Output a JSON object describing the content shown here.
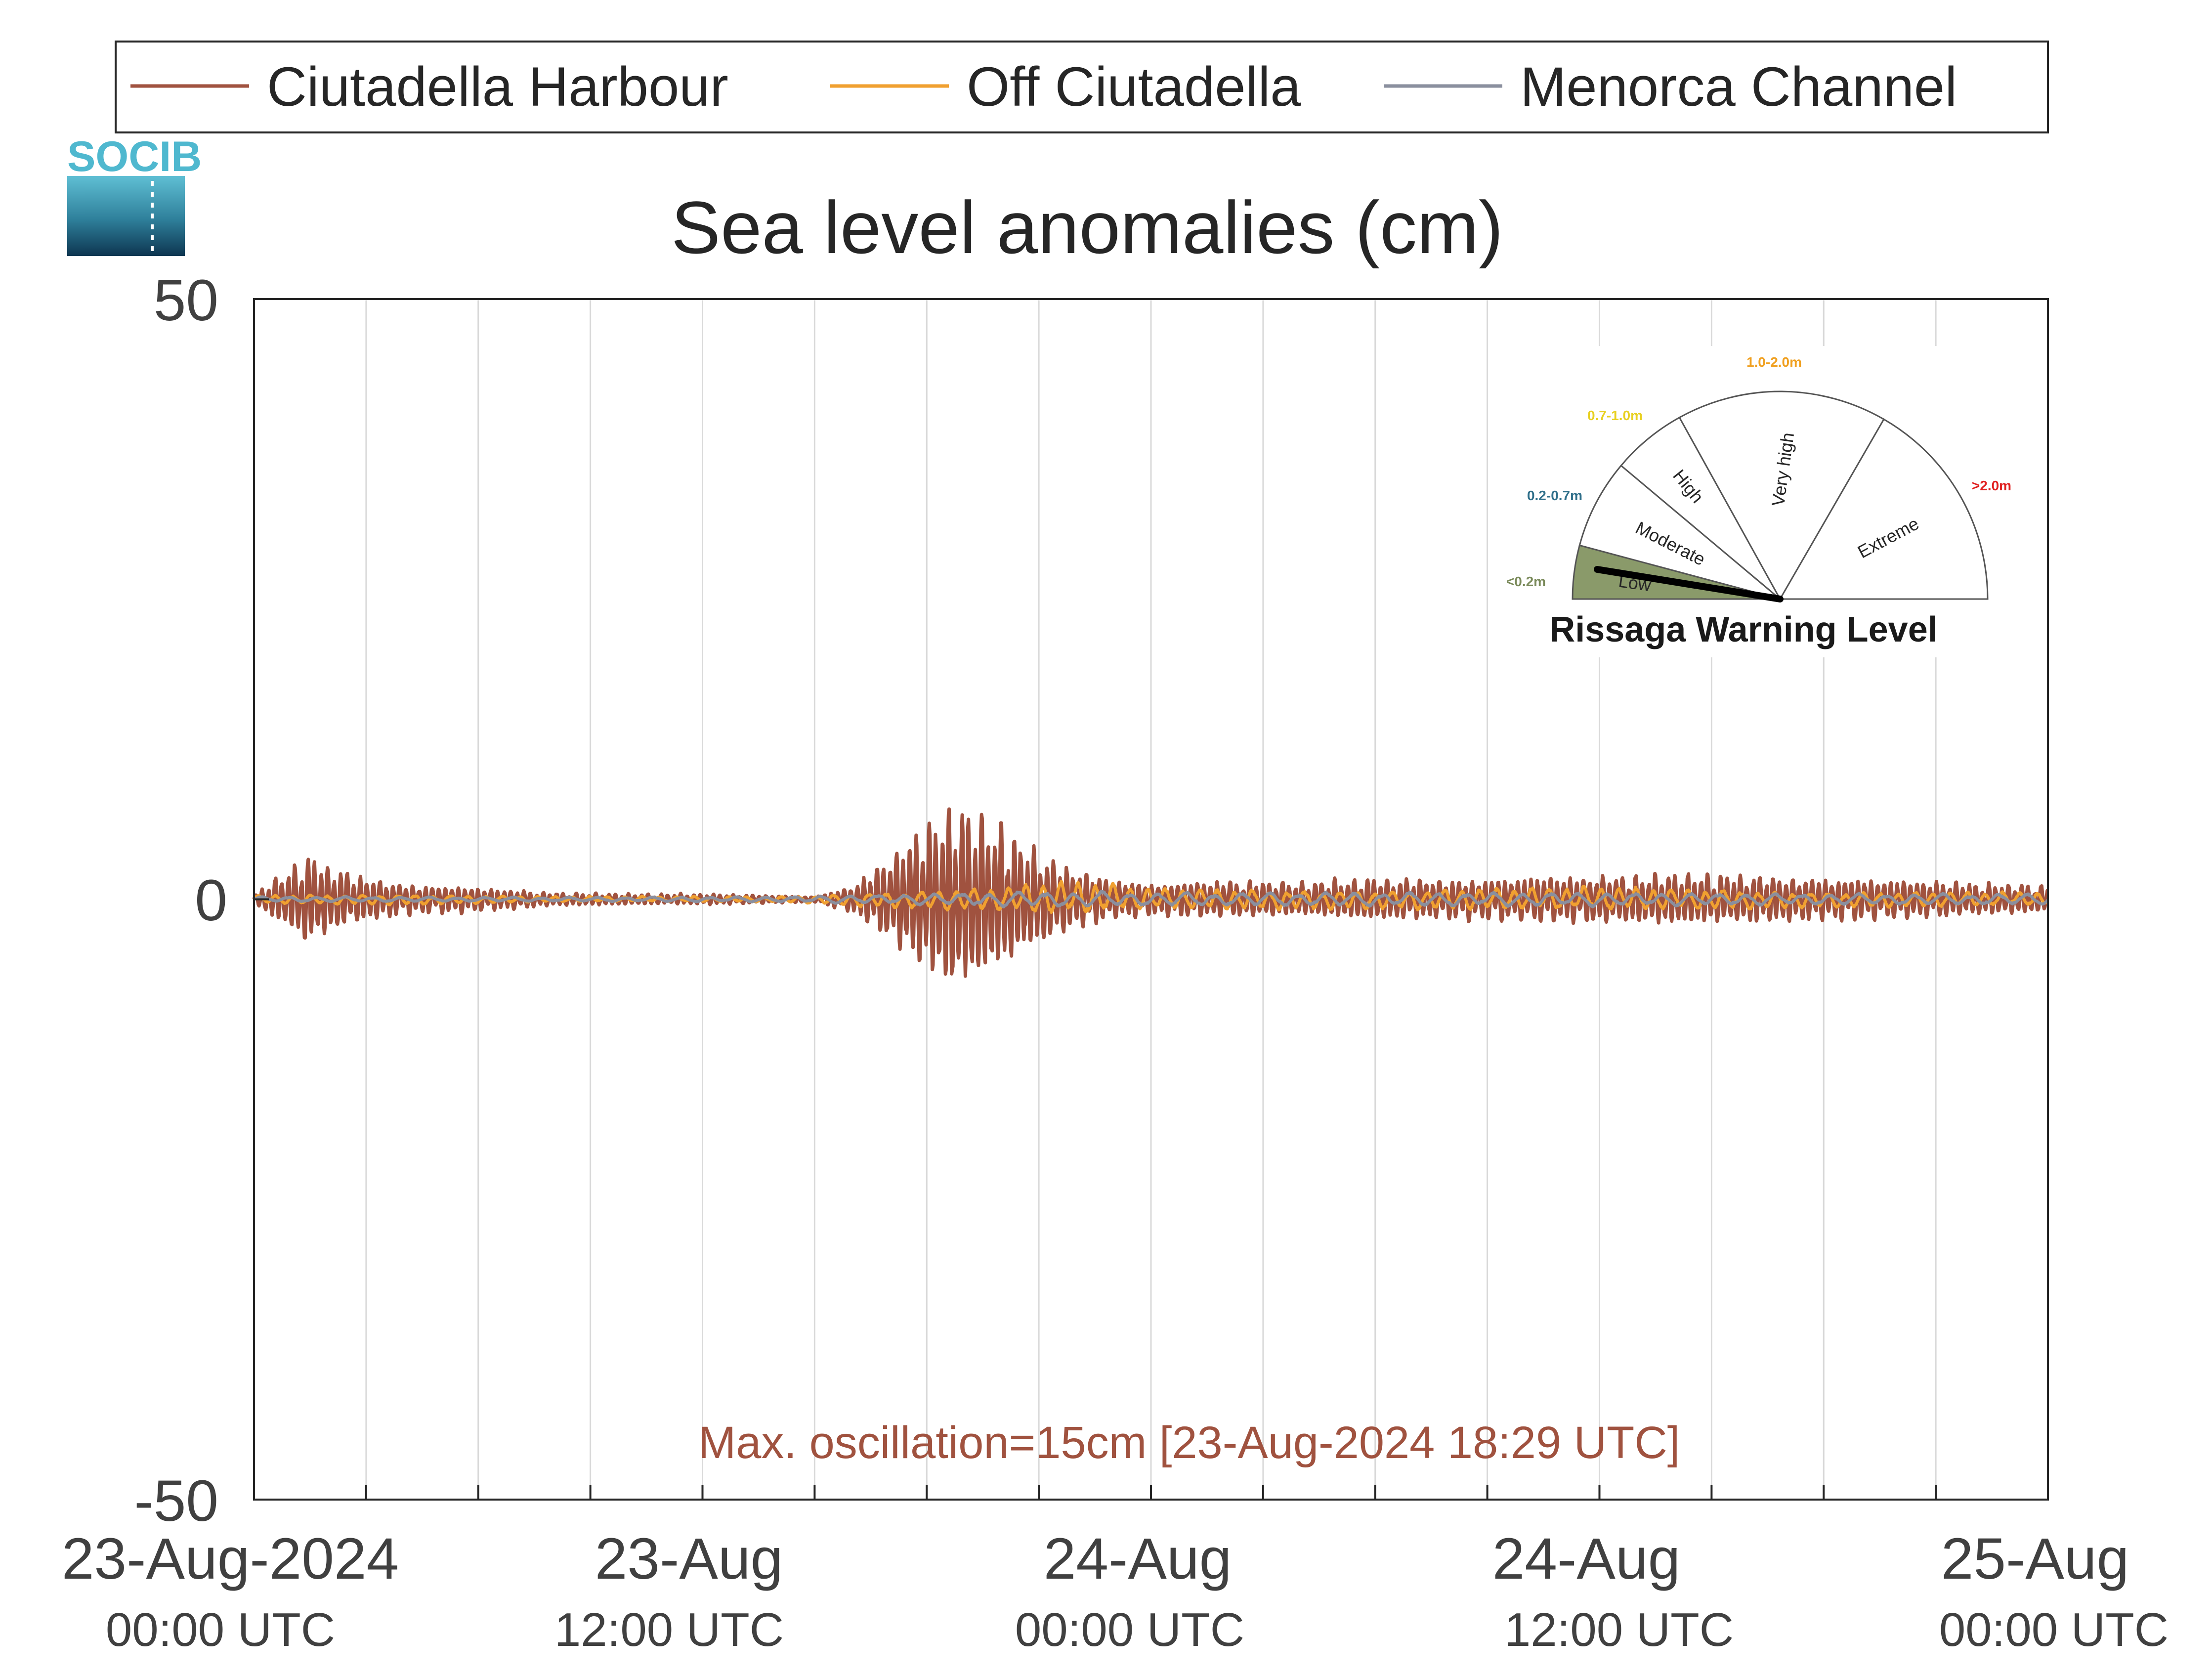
{
  "logo": {
    "text": "SOCIB"
  },
  "chart_data": {
    "type": "line",
    "title": "Sea level anomalies (cm)",
    "xlabel": "",
    "ylabel": "",
    "ylim": [
      -50,
      50
    ],
    "y_ticks": [
      50,
      0,
      -50
    ],
    "y_tick_labels": [
      "50",
      "0",
      "-50"
    ],
    "x_range_hours": [
      0,
      48
    ],
    "x_ticks": [
      {
        "hours": 0,
        "date": "23-Aug-2024",
        "time": "00:00 UTC"
      },
      {
        "hours": 12,
        "date": "23-Aug",
        "time": "12:00 UTC"
      },
      {
        "hours": 24,
        "date": "24-Aug",
        "time": "00:00 UTC"
      },
      {
        "hours": 36,
        "date": "24-Aug",
        "time": "12:00 UTC"
      },
      {
        "hours": 48,
        "date": "25-Aug",
        "time": "00:00 UTC"
      }
    ],
    "grid": "vertical every 3 hours",
    "legend_placement": "top",
    "series": [
      {
        "name": "Ciutadella Harbour",
        "color": "#a0523f",
        "envelope_hours": [
          0,
          1,
          1.5,
          2,
          3,
          4,
          6,
          8,
          10,
          12,
          14,
          15,
          16,
          17,
          18,
          18.5,
          19,
          20,
          21,
          22,
          23,
          24,
          26,
          28,
          30,
          32,
          34,
          36,
          38,
          40,
          42,
          44,
          46,
          48
        ],
        "envelope_amplitude_cm": [
          0.3,
          2.5,
          3.5,
          2.5,
          1.6,
          1.2,
          0.9,
          0.5,
          0.4,
          0.4,
          0.3,
          0.2,
          1.0,
          3.2,
          5.5,
          7.0,
          6.8,
          5.5,
          3.5,
          2.2,
          1.5,
          1.2,
          1.4,
          1.3,
          1.6,
          1.5,
          1.7,
          1.8,
          1.9,
          1.8,
          1.6,
          1.5,
          1.2,
          1.0
        ],
        "period_minutes": 10.5
      },
      {
        "name": "Off Ciutadella",
        "color": "#f0a030",
        "envelope_hours": [
          0,
          4,
          8,
          12,
          14,
          15,
          16,
          18,
          20,
          21,
          22,
          24,
          30,
          36,
          42,
          48
        ],
        "envelope_amplitude_cm": [
          0.3,
          0.4,
          0.2,
          0.2,
          0.2,
          0.3,
          0.5,
          0.7,
          0.9,
          1.2,
          1.3,
          0.8,
          0.7,
          0.9,
          0.6,
          0.5
        ],
        "period_minutes": 28
      },
      {
        "name": "Menorca Channel",
        "color": "#8a8f9e",
        "envelope_hours": [
          0,
          8,
          14,
          18,
          21,
          24,
          30,
          36,
          42,
          48
        ],
        "envelope_amplitude_cm": [
          0.2,
          0.15,
          0.2,
          0.4,
          0.6,
          0.5,
          0.5,
          0.5,
          0.4,
          0.4
        ],
        "period_minutes": 45
      }
    ],
    "annotation": "Max. oscillation=15cm [23-Aug-2024 18:29 UTC]",
    "gauge": {
      "title": "Rissaga Warning Level",
      "current_level": "Low",
      "segments": [
        {
          "label": "Low",
          "range": "<0.2m",
          "range_color": "#7a8a5a",
          "fill": "#8a9a6a",
          "active": true
        },
        {
          "label": "Moderate",
          "range": "0.2-0.7m",
          "range_color": "#2f6f8a",
          "fill": "#ffffff",
          "active": false
        },
        {
          "label": "High",
          "range": "0.7-1.0m",
          "range_color": "#e8d020",
          "fill": "#ffffff",
          "active": false
        },
        {
          "label": "Very high",
          "range": "1.0-2.0m",
          "range_color": "#f0a020",
          "fill": "#ffffff",
          "active": false
        },
        {
          "label": "Extreme",
          "range": ">2.0m",
          "range_color": "#e02020",
          "fill": "#ffffff",
          "active": false
        }
      ]
    }
  }
}
